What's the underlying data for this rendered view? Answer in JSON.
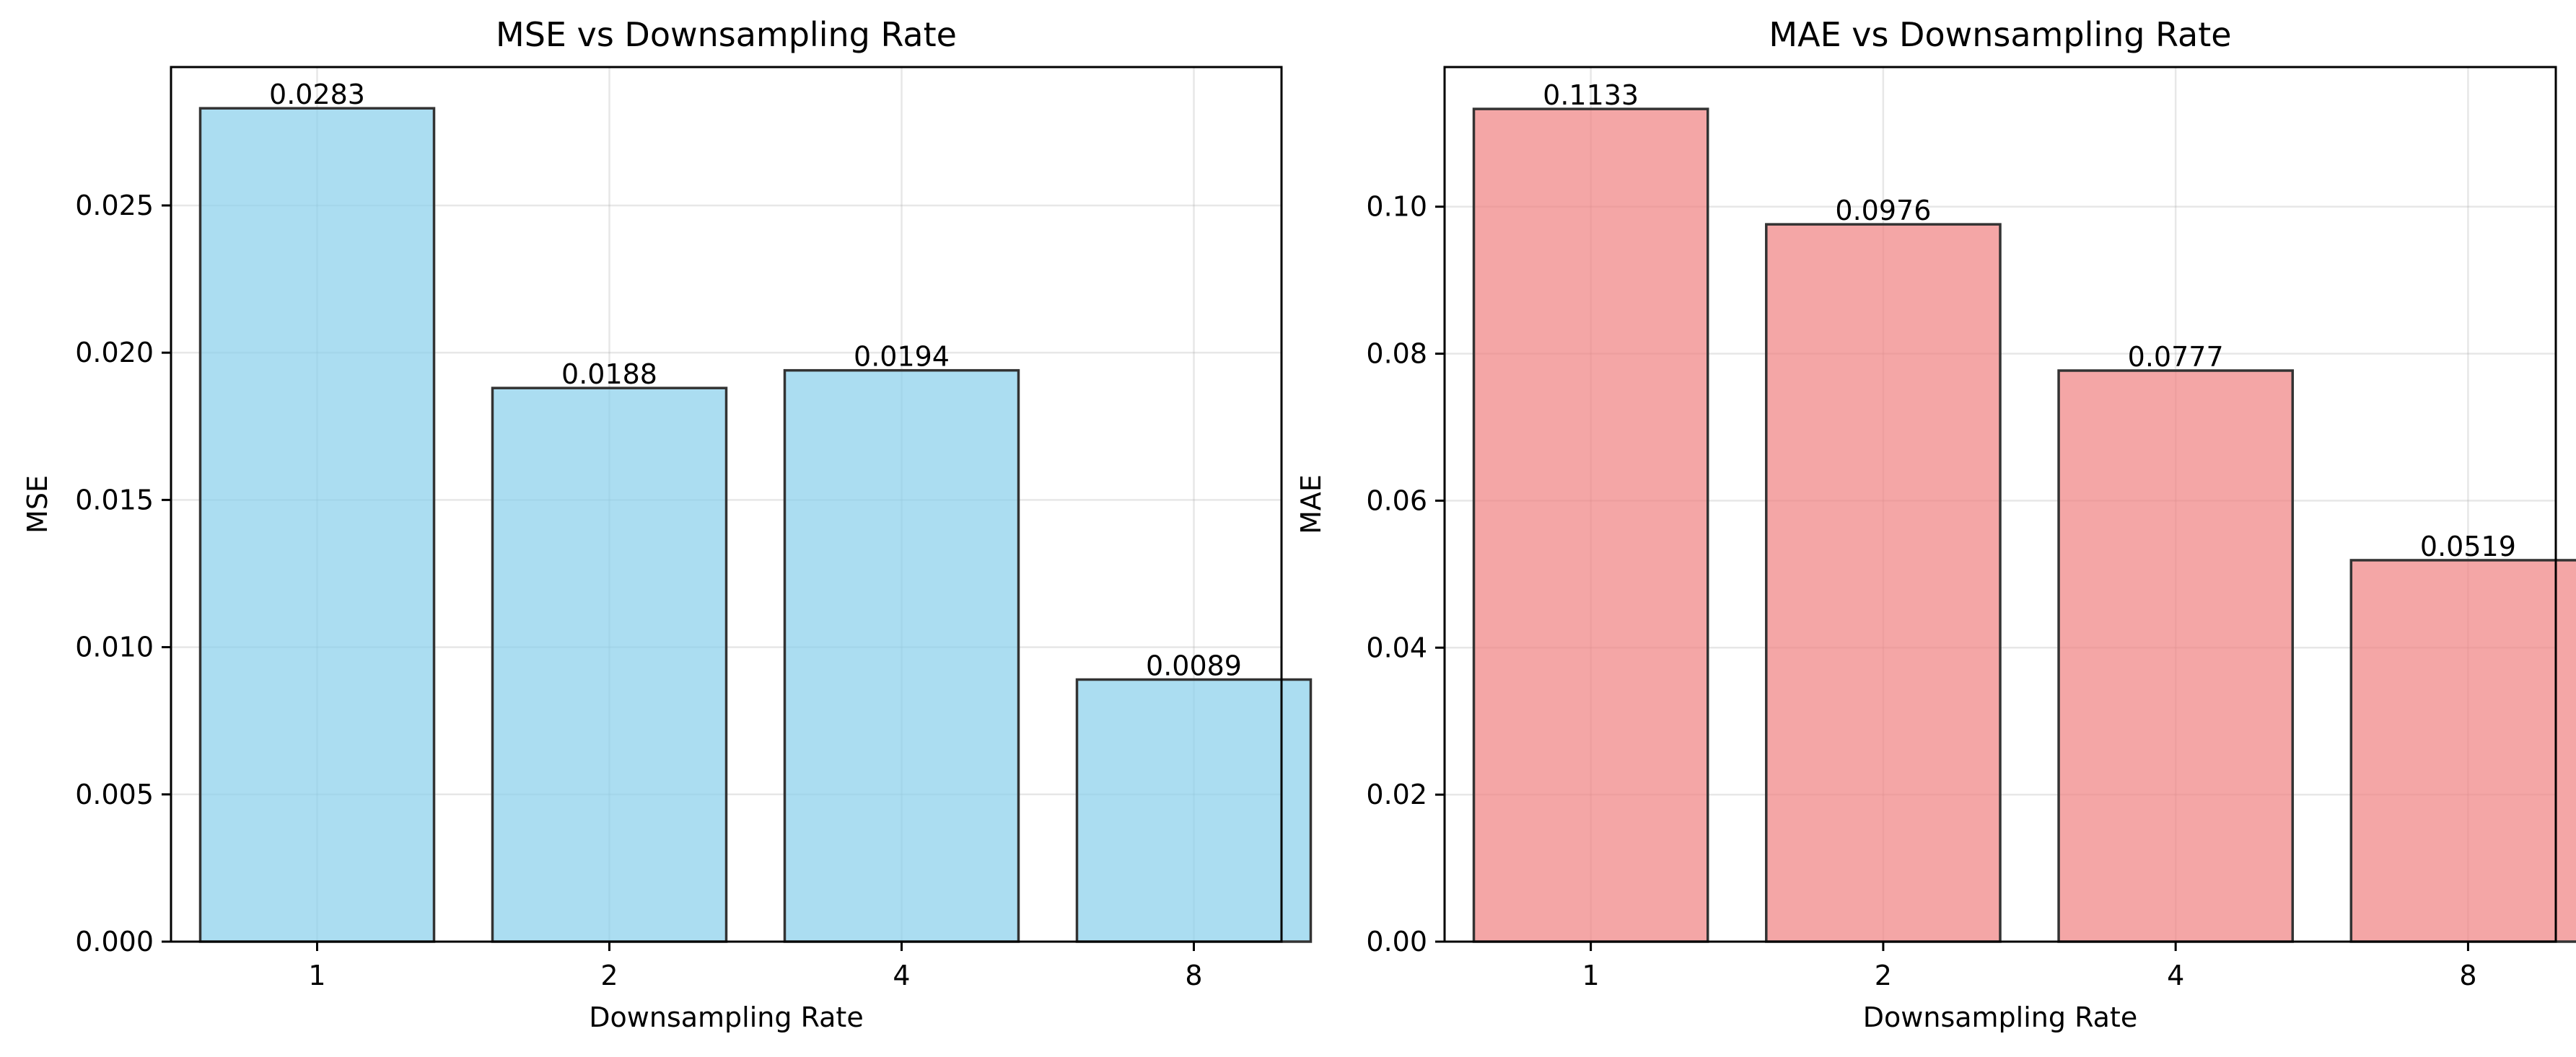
{
  "chart_data": [
    {
      "type": "bar",
      "title": "MSE vs Downsampling Rate",
      "xlabel": "Downsampling Rate",
      "ylabel": "MSE",
      "categories": [
        "1",
        "2",
        "4",
        "8"
      ],
      "values": [
        0.0283,
        0.0188,
        0.0194,
        0.0089
      ],
      "value_labels": [
        "0.0283",
        "0.0188",
        "0.0194",
        "0.0089"
      ],
      "yticks": [
        0.0,
        0.005,
        0.01,
        0.015,
        0.02,
        0.025
      ],
      "ytick_labels": [
        "0.000",
        "0.005",
        "0.010",
        "0.015",
        "0.020",
        "0.025"
      ],
      "ylim": [
        0,
        0.0297
      ],
      "grid": true,
      "color": "#87CEEB"
    },
    {
      "type": "bar",
      "title": "MAE vs Downsampling Rate",
      "xlabel": "Downsampling Rate",
      "ylabel": "MAE",
      "categories": [
        "1",
        "2",
        "4",
        "8"
      ],
      "values": [
        0.1133,
        0.0976,
        0.0777,
        0.0519
      ],
      "value_labels": [
        "0.1133",
        "0.0976",
        "0.0777",
        "0.0519"
      ],
      "yticks": [
        0.0,
        0.02,
        0.04,
        0.06,
        0.08,
        0.1
      ],
      "ytick_labels": [
        "0.00",
        "0.02",
        "0.04",
        "0.06",
        "0.08",
        "0.10"
      ],
      "ylim": [
        0,
        0.119
      ],
      "grid": true,
      "color": "#F08080"
    }
  ]
}
